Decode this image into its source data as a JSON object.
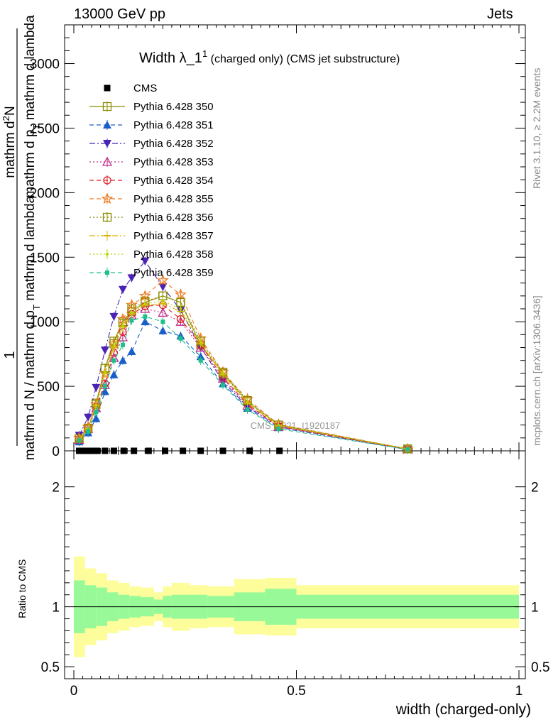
{
  "header": {
    "left": "13000 GeV pp",
    "right": "Jets"
  },
  "side_labels": {
    "rivet": "Rivet 3.1.10, ≥ 2.2M events",
    "mcplots": "mcplots.cern.ch [arXiv:1306.3436]"
  },
  "chart_data": [
    {
      "type": "line",
      "title": "Width λ_1",
      "title_sup": "1",
      "title_suffix": "(charged only) (CMS jet substructure)",
      "watermark": "CMS_2021_I1920187",
      "ylabel_parts": {
        "numerator": "1",
        "denominator": "mathrm d N / mathrm d p",
        "denominator_sub": "T",
        "denominator_tail": " mathrm d lambda",
        "top_numerator": "mathrm d",
        "top_numerator_sup": "2",
        "top_numerator_tail": "N",
        "top_denominator": "mathrm d p",
        "top_denominator_sub": "T",
        "top_denominator_tail": " mathrm d lambda"
      },
      "xlim": [
        0,
        1
      ],
      "ylim": [
        0,
        3300
      ],
      "yticks": [
        0,
        500,
        1000,
        1500,
        2000,
        2500,
        3000
      ],
      "ytick_labels": [
        "0",
        "500",
        "1000",
        "1500",
        "2000",
        "2500",
        "3000"
      ],
      "x": [
        0.012,
        0.032,
        0.05,
        0.07,
        0.09,
        0.11,
        0.13,
        0.16,
        0.2,
        0.24,
        0.285,
        0.335,
        0.39,
        0.46,
        0.75
      ],
      "series": [
        {
          "name": "CMS",
          "color": "#000000",
          "marker": "square-filled",
          "dash": "none",
          "values": [
            0,
            0,
            0,
            0,
            0,
            0,
            0,
            0,
            0,
            0,
            0,
            0,
            0,
            0,
            0
          ]
        },
        {
          "name": "Pythia 6.428 350",
          "color": "#8b8b00",
          "marker": "square-open",
          "dash": "solid",
          "values": [
            95,
            170,
            370,
            640,
            850,
            1000,
            1080,
            1150,
            1200,
            1150,
            820,
            600,
            380,
            200,
            15
          ]
        },
        {
          "name": "Pythia 6.428 351",
          "color": "#1a5fc7",
          "marker": "triangle-up-filled",
          "dash": "6,4",
          "values": [
            70,
            140,
            250,
            460,
            590,
            700,
            770,
            1000,
            930,
            890,
            730,
            520,
            330,
            180,
            10
          ]
        },
        {
          "name": "Pythia 6.428 352",
          "color": "#4a22b6",
          "marker": "triangle-down-filled",
          "dash": "8,3,2,3",
          "values": [
            120,
            260,
            490,
            780,
            1040,
            1250,
            1340,
            1470,
            1270,
            1090,
            800,
            540,
            340,
            190,
            12
          ]
        },
        {
          "name": "Pythia 6.428 353",
          "color": "#c22d8a",
          "marker": "triangle-up-open",
          "dash": "2,3",
          "values": [
            85,
            170,
            330,
            510,
            720,
            880,
            1050,
            1100,
            1070,
            1000,
            800,
            560,
            350,
            185,
            12
          ]
        },
        {
          "name": "Pythia 6.428 354",
          "color": "#e0212a",
          "marker": "circle-open",
          "dash": "6,4",
          "values": [
            90,
            175,
            340,
            520,
            760,
            920,
            1060,
            1120,
            1130,
            1020,
            820,
            570,
            360,
            190,
            12
          ]
        },
        {
          "name": "Pythia 6.428 355",
          "color": "#f07a22",
          "marker": "star-open",
          "dash": "6,4",
          "values": [
            100,
            185,
            360,
            600,
            830,
            1020,
            1130,
            1200,
            1320,
            1210,
            870,
            610,
            400,
            205,
            15
          ]
        },
        {
          "name": "Pythia 6.428 356",
          "color": "#8b8b00",
          "marker": "square-open",
          "dash": "2,3",
          "values": [
            95,
            175,
            360,
            640,
            830,
            990,
            1100,
            1160,
            1200,
            1150,
            850,
            610,
            390,
            200,
            15
          ]
        },
        {
          "name": "Pythia 6.428 357",
          "color": "#d4b400",
          "marker": "dash-marker",
          "dash": "8,3,2,3",
          "values": [
            90,
            170,
            350,
            600,
            800,
            960,
            1060,
            1130,
            1140,
            1080,
            830,
            590,
            370,
            195,
            14
          ]
        },
        {
          "name": "Pythia 6.428 358",
          "color": "#b8d400",
          "marker": "dot",
          "dash": "2,3",
          "values": [
            92,
            172,
            355,
            610,
            815,
            970,
            1070,
            1140,
            1160,
            1100,
            840,
            600,
            380,
            198,
            14
          ]
        },
        {
          "name": "Pythia 6.428 359",
          "color": "#1fbf8a",
          "marker": "square-small",
          "dash": "6,4",
          "values": [
            80,
            150,
            300,
            500,
            700,
            820,
            1010,
            1040,
            1000,
            870,
            700,
            510,
            320,
            170,
            10
          ]
        }
      ],
      "cms_bins": [
        0.012,
        0.025,
        0.038,
        0.052,
        0.07,
        0.09,
        0.112,
        0.135,
        0.168,
        0.205,
        0.245,
        0.285,
        0.335,
        0.395,
        0.462
      ]
    },
    {
      "type": "area",
      "ylabel": "Ratio to CMS",
      "xlabel": "width (charged-only)",
      "xlim": [
        0,
        1
      ],
      "ylim": [
        0.4,
        2.3
      ],
      "yticks": [
        0.5,
        1,
        2
      ],
      "ytick_labels": [
        "0.5",
        "1",
        "2"
      ],
      "xticks": [
        0,
        0.5,
        1
      ],
      "xtick_labels": [
        "0",
        "0.5",
        "1"
      ],
      "bin_edges": [
        0,
        0.025,
        0.05,
        0.075,
        0.1,
        0.125,
        0.15,
        0.18,
        0.2,
        0.22,
        0.26,
        0.3,
        0.36,
        0.43,
        0.5,
        1
      ],
      "band_inner": [
        0.22,
        0.18,
        0.16,
        0.12,
        0.1,
        0.09,
        0.08,
        0.06,
        0.09,
        0.1,
        0.1,
        0.09,
        0.12,
        0.15,
        0.1
      ],
      "band_outer": [
        0.42,
        0.32,
        0.28,
        0.22,
        0.2,
        0.17,
        0.16,
        0.12,
        0.17,
        0.2,
        0.18,
        0.17,
        0.23,
        0.24,
        0.18
      ],
      "colors": {
        "inner": "#98f998",
        "outer": "#fdfd9b",
        "ref_line": "#000000"
      }
    }
  ]
}
